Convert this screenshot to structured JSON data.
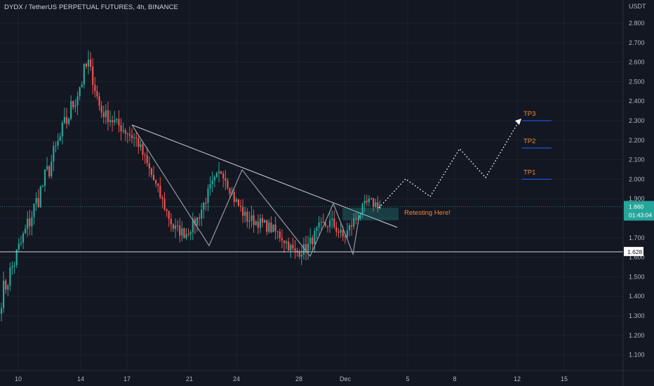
{
  "header": {
    "title": "DYDX / TetherUS PERPETUAL FUTURES, 4h, BINANCE"
  },
  "chart_data": {
    "type": "candlestick",
    "symbol": "DYDX / TetherUS PERPETUAL FUTURES",
    "interval": "4h",
    "exchange": "BINANCE",
    "currency_label": "USDT",
    "y_ticks": [
      "2.800",
      "2.700",
      "2.600",
      "2.500",
      "2.400",
      "2.300",
      "2.200",
      "2.100",
      "2.000",
      "1.900",
      "1.800",
      "1.700",
      "1.600",
      "1.500",
      "1.400",
      "1.300",
      "1.200",
      "1.100"
    ],
    "x_ticks": [
      "10",
      "14",
      "17",
      "21",
      "24",
      "28",
      "Dec",
      "5",
      "8",
      "12",
      "15"
    ],
    "ylim": [
      1.05,
      2.85
    ],
    "current_price": {
      "value": "1.860",
      "countdown": "01:43:04"
    },
    "support_level": {
      "value": "1.628"
    },
    "targets": [
      {
        "label": "TP1",
        "price": 2.0
      },
      {
        "label": "TP2",
        "price": 2.16
      },
      {
        "label": "TP3",
        "price": 2.3
      }
    ],
    "annotation": "Retesting Here!",
    "price_path": [
      2.6,
      2.35,
      2.3,
      2.25,
      2.2,
      2.05,
      1.9,
      1.75,
      1.72,
      1.8,
      1.95,
      2.05,
      1.9,
      1.8,
      1.78,
      1.75,
      1.7,
      1.62,
      1.65,
      1.75,
      1.78,
      1.7,
      1.8,
      1.88,
      1.87
    ]
  }
}
